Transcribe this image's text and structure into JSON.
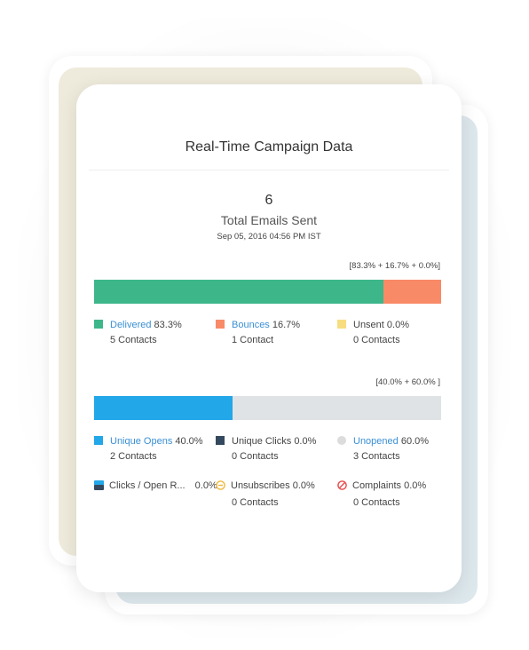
{
  "card": {
    "title": "Real-Time Campaign Data",
    "total_count": "6",
    "total_label": "Total Emails Sent",
    "date": "Sep 05, 2016 04:56 PM IST"
  },
  "delivery": {
    "summary": "[83.3% + 16.7% + 0.0%]",
    "segments": [
      {
        "name": "Delivered",
        "percent": 83.3,
        "color": "#3db68a"
      },
      {
        "name": "Bounces",
        "percent": 16.7,
        "color": "#f88a68"
      },
      {
        "name": "Unsent",
        "percent": 0.0,
        "color": "#f8dd80"
      }
    ],
    "legend": [
      {
        "label": "Delivered",
        "value": "83.3%",
        "contacts": "5 Contacts",
        "color": "#3db68a"
      },
      {
        "label": "Bounces",
        "value": "16.7%",
        "contacts": "1 Contact",
        "color": "#f88a68"
      },
      {
        "label": "Unsent",
        "value": "0.0%",
        "contacts": "0 Contacts",
        "color": "#f8dd80"
      }
    ]
  },
  "engagement": {
    "summary": "[40.0% + 60.0% ]",
    "segments": [
      {
        "name": "Unique Opens",
        "percent": 40.0,
        "color": "#22a7e8"
      },
      {
        "name": "Unopened",
        "percent": 60.0,
        "color": "#e0e3e6"
      }
    ],
    "legend": [
      {
        "label": "Unique Opens",
        "value": "40.0%",
        "contacts": "2 Contacts",
        "color": "#22a7e8"
      },
      {
        "label": "Unique Clicks",
        "value": "0.0%",
        "contacts": "0 Contacts",
        "color": "#34495e"
      },
      {
        "label": "Unopened",
        "value": "60.0%",
        "contacts": "3 Contacts",
        "color": "#dcdcdc"
      },
      {
        "label": "Clicks / Open R...",
        "value": "0.0%",
        "color": "#22a7e8"
      },
      {
        "label": "Unsubscribes",
        "value": "0.0%",
        "contacts": "0 Contacts",
        "color": "#f0b63b"
      },
      {
        "label": "Complaints",
        "value": "0.0%",
        "contacts": "0 Contacts",
        "color": "#e84a4a"
      }
    ]
  }
}
